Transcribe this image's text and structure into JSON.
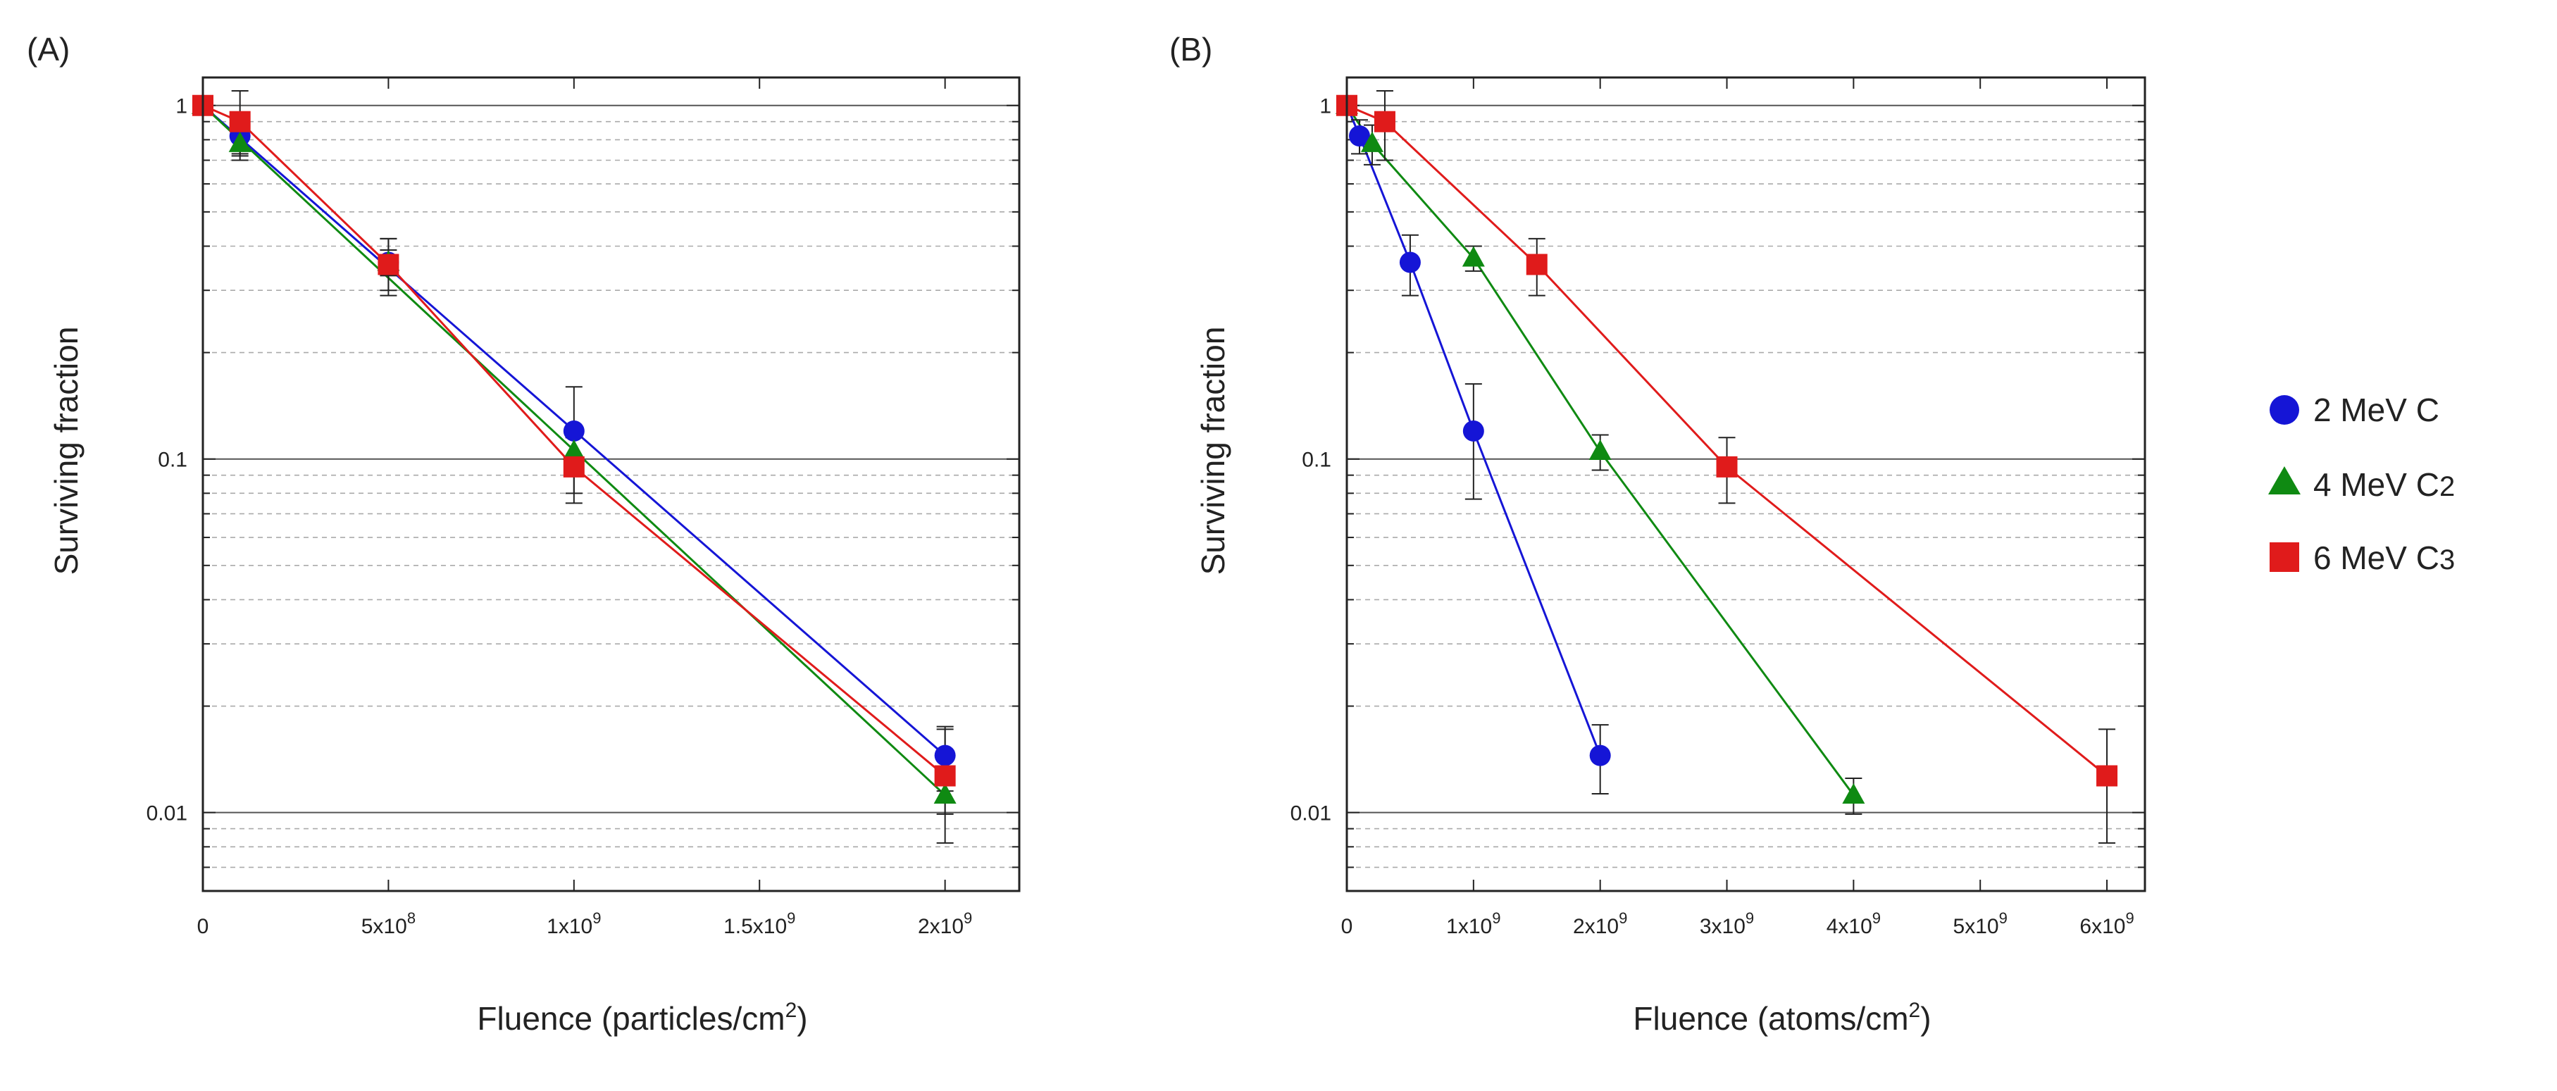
{
  "chart_data": [
    {
      "type": "line",
      "panel": "(A)",
      "xlabel": "Fluence (particles/cm",
      "xlabel_sup": "2",
      "xlabel_end": ")",
      "ylabel": "Surviving fraction",
      "xlim": [
        0,
        2200000000
      ],
      "ylim": [
        0.006,
        1.2
      ],
      "yscale": "log",
      "x_ticks": [
        0,
        500000000,
        1000000000,
        1500000000,
        2000000000
      ],
      "x_tick_labels": [
        {
          "base": "0",
          "exp": ""
        },
        {
          "base": "5x10",
          "exp": "8"
        },
        {
          "base": "1x10",
          "exp": "9"
        },
        {
          "base": "1.5x10",
          "exp": "9"
        },
        {
          "base": "2x10",
          "exp": "9"
        }
      ],
      "y_ticks": [
        0.01,
        0.1,
        1
      ],
      "y_tick_labels": [
        "0.01",
        "0.1",
        "1"
      ],
      "grid": "horizontal dashed",
      "series": [
        {
          "name": "2 MeV C",
          "color": "#1515d6",
          "marker": "circle",
          "points": [
            [
              0,
              1.0
            ],
            [
              100000000,
              0.82
            ],
            [
              500000000,
              0.36
            ],
            [
              1000000000,
              0.12
            ],
            [
              2000000000,
              0.0145
            ]
          ],
          "err": [
            [
              0,
              0
            ],
            [
              0.09,
              0.09
            ],
            [
              0.06,
              0.06
            ],
            [
              0.04,
              0.04
            ],
            [
              0.003,
              0.003
            ]
          ],
          "fit": [
            [
              0,
              1.0
            ],
            [
              2000000000,
              0.0145
            ]
          ]
        },
        {
          "name": "4 MeV C2",
          "color": "#0f8a12",
          "marker": "triangle",
          "points": [
            [
              0,
              1.0
            ],
            [
              100000000,
              0.78
            ],
            [
              500000000,
              0.36
            ],
            [
              1000000000,
              0.105
            ],
            [
              2000000000,
              0.0112
            ]
          ],
          "err": [
            [
              0,
              0
            ],
            [
              0.06,
              0.06
            ],
            [
              0.03,
              0.03
            ],
            [
              0.01,
              0.01
            ],
            [
              0.0013,
              0.0013
            ]
          ],
          "fit": [
            [
              0,
              1.0
            ],
            [
              2000000000,
              0.0112
            ]
          ]
        },
        {
          "name": "6 MeV C3",
          "color": "#e01b1b",
          "marker": "square",
          "points": [
            [
              0,
              1.0
            ],
            [
              100000000,
              0.9
            ],
            [
              500000000,
              0.355
            ],
            [
              1000000000,
              0.095
            ],
            [
              2000000000,
              0.0127
            ]
          ],
          "err": [
            [
              0,
              0
            ],
            [
              0.2,
              0.2
            ],
            [
              0.065,
              0.065
            ],
            [
              0.02,
              0.02
            ],
            [
              0.0045,
              0.0045
            ]
          ],
          "fit": [
            [
              0,
              1.0
            ],
            [
              100000000,
              0.9
            ],
            [
              500000000,
              0.355
            ],
            [
              1000000000,
              0.095
            ],
            [
              2000000000,
              0.0127
            ]
          ]
        }
      ]
    },
    {
      "type": "line",
      "panel": "(B)",
      "xlabel": "Fluence (atoms/cm",
      "xlabel_sup": "2",
      "xlabel_end": ")",
      "ylabel": "Surviving fraction",
      "xlim": [
        0,
        6300000000
      ],
      "ylim": [
        0.006,
        1.2
      ],
      "yscale": "log",
      "x_ticks": [
        0,
        1000000000,
        2000000000,
        3000000000,
        4000000000,
        5000000000,
        6000000000
      ],
      "x_tick_labels": [
        {
          "base": "0",
          "exp": ""
        },
        {
          "base": "1x10",
          "exp": "9"
        },
        {
          "base": "2x10",
          "exp": "9"
        },
        {
          "base": "3x10",
          "exp": "9"
        },
        {
          "base": "4x10",
          "exp": "9"
        },
        {
          "base": "5x10",
          "exp": "9"
        },
        {
          "base": "6x10",
          "exp": "9"
        }
      ],
      "y_ticks": [
        0.01,
        0.1,
        1
      ],
      "y_tick_labels": [
        "0.01",
        "0.1",
        "1"
      ],
      "grid": "horizontal dashed",
      "series": [
        {
          "name": "2 MeV C",
          "color": "#1515d6",
          "marker": "circle",
          "points": [
            [
              0,
              1.0
            ],
            [
              100000000,
              0.82
            ],
            [
              500000000,
              0.36
            ],
            [
              1000000000,
              0.12
            ],
            [
              2000000000,
              0.0145
            ]
          ],
          "err": [
            [
              0,
              0
            ],
            [
              0.09,
              0.09
            ],
            [
              0.07,
              0.07
            ],
            [
              0.043,
              0.043
            ],
            [
              0.0032,
              0.0032
            ]
          ],
          "fit": [
            [
              0,
              1.0
            ],
            [
              100000000,
              0.82
            ],
            [
              500000000,
              0.36
            ],
            [
              1000000000,
              0.12
            ],
            [
              2000000000,
              0.0145
            ]
          ]
        },
        {
          "name": "4 MeV C2",
          "color": "#0f8a12",
          "marker": "triangle",
          "points": [
            [
              0,
              1.0
            ],
            [
              200000000,
              0.78
            ],
            [
              1000000000,
              0.37
            ],
            [
              2000000000,
              0.105
            ],
            [
              4000000000,
              0.0112
            ]
          ],
          "err": [
            [
              0,
              0
            ],
            [
              0.1,
              0.1
            ],
            [
              0.03,
              0.03
            ],
            [
              0.012,
              0.012
            ],
            [
              0.0013,
              0.0013
            ]
          ],
          "fit": [
            [
              0,
              1.0
            ],
            [
              200000000,
              0.78
            ],
            [
              1000000000,
              0.37
            ],
            [
              2000000000,
              0.105
            ],
            [
              4000000000,
              0.0112
            ]
          ]
        },
        {
          "name": "6 MeV C3",
          "color": "#e01b1b",
          "marker": "square",
          "points": [
            [
              0,
              1.0
            ],
            [
              300000000,
              0.9
            ],
            [
              1500000000,
              0.355
            ],
            [
              3000000000,
              0.095
            ],
            [
              6000000000,
              0.0127
            ]
          ],
          "err": [
            [
              0,
              0
            ],
            [
              0.2,
              0.2
            ],
            [
              0.065,
              0.065
            ],
            [
              0.02,
              0.02
            ],
            [
              0.0045,
              0.0045
            ]
          ],
          "fit": [
            [
              0,
              1.0
            ],
            [
              300000000,
              0.9
            ],
            [
              1500000000,
              0.355
            ],
            [
              3000000000,
              0.095
            ],
            [
              6000000000,
              0.0127
            ]
          ]
        }
      ]
    }
  ],
  "legend": {
    "placement": "right",
    "entries": [
      {
        "label": "2 MeV C",
        "sub": "",
        "color": "#1515d6",
        "marker": "circle"
      },
      {
        "label": "4 MeV C",
        "sub": "2",
        "color": "#0f8a12",
        "marker": "triangle"
      },
      {
        "label": "6 MeV C",
        "sub": "3",
        "color": "#e01b1b",
        "marker": "square"
      }
    ]
  }
}
